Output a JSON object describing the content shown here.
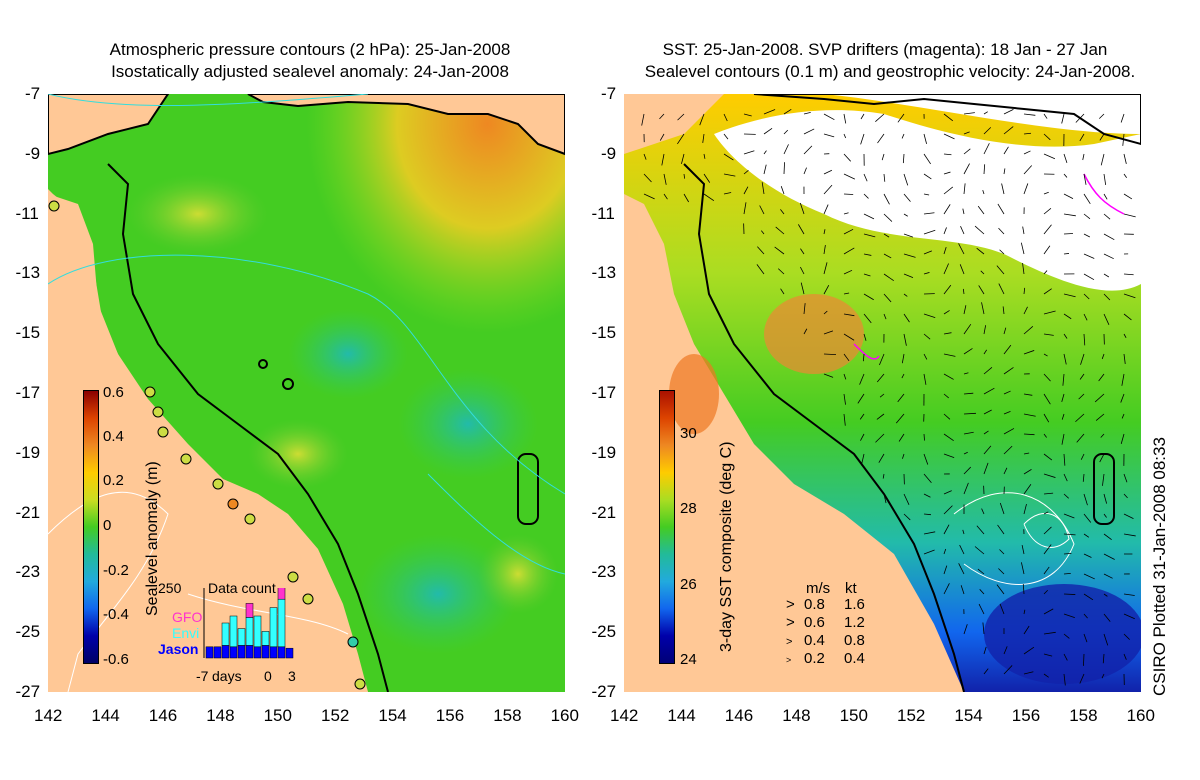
{
  "left_panel": {
    "title_line1": "Atmospheric pressure contours (2 hPa): 25-Jan-2008",
    "title_line2": "Isostatically adjusted sealevel anomaly: 24-Jan-2008",
    "colorbar_label": "Sealevel anomaly (m)",
    "colorbar_ticks": [
      "0.6",
      "0.4",
      "0.2",
      "0",
      "-0.2",
      "-0.4",
      "-0.6"
    ],
    "inset": {
      "title": "Data count",
      "y_max": "250",
      "legend": [
        {
          "name": "GFO",
          "color": "#ff33cc"
        },
        {
          "name": "Envi",
          "color": "#33ffff"
        },
        {
          "name": "Jason",
          "color": "#0000ff"
        }
      ],
      "x_labels": [
        "-7",
        "days",
        "0",
        "3"
      ],
      "bars": [
        {
          "jason": 40,
          "envi": 0,
          "gfo": 0
        },
        {
          "jason": 40,
          "envi": 0,
          "gfo": 0
        },
        {
          "jason": 45,
          "envi": 80,
          "gfo": 0
        },
        {
          "jason": 40,
          "envi": 110,
          "gfo": 0
        },
        {
          "jason": 45,
          "envi": 60,
          "gfo": 0
        },
        {
          "jason": 45,
          "envi": 100,
          "gfo": 50
        },
        {
          "jason": 40,
          "envi": 110,
          "gfo": 0
        },
        {
          "jason": 45,
          "envi": 50,
          "gfo": 0
        },
        {
          "jason": 40,
          "envi": 140,
          "gfo": 0
        },
        {
          "jason": 40,
          "envi": 170,
          "gfo": 50
        },
        {
          "jason": 35,
          "envi": 0,
          "gfo": 0
        }
      ]
    },
    "colors": {
      "land": "#ffc896",
      "sea": "#44cc22"
    }
  },
  "right_panel": {
    "title_line1": "SST: 25-Jan-2008. SVP drifters (magenta): 18 Jan - 27 Jan",
    "title_line2": "Sealevel contours (0.1 m) and geostrophic velocity: 24-Jan-2008.",
    "colorbar_label": "3-day SST composite (deg C)",
    "colorbar_ticks": [
      "30",
      "28",
      "26",
      "24"
    ],
    "velocity_legend": {
      "header_ms": "m/s",
      "header_kt": "kt",
      "rows": [
        {
          "ms": "0.8",
          "kt": "1.6"
        },
        {
          "ms": "0.6",
          "kt": "1.2"
        },
        {
          "ms": "0.4",
          "kt": "0.8"
        },
        {
          "ms": "0.2",
          "kt": "0.4"
        }
      ]
    }
  },
  "axes": {
    "y_labels": [
      "-7",
      "-9",
      "-11",
      "-13",
      "-15",
      "-17",
      "-19",
      "-21",
      "-23",
      "-25",
      "-27"
    ],
    "x_labels": [
      "142",
      "144",
      "146",
      "148",
      "150",
      "152",
      "154",
      "156",
      "158",
      "160"
    ]
  },
  "footer": {
    "plotted": "CSIRO Plotted 31-Jan-2008 08:33"
  }
}
